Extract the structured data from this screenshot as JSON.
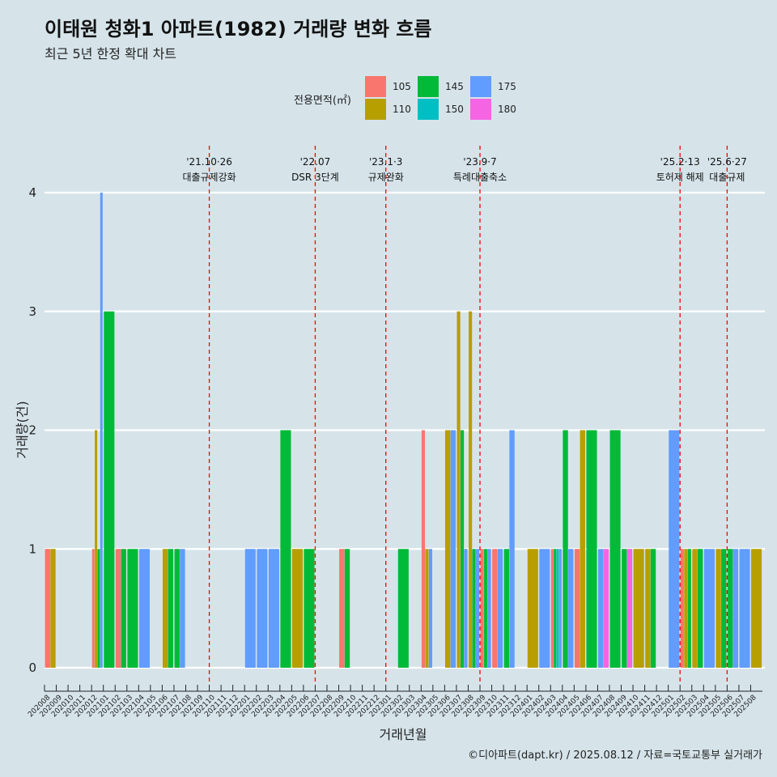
{
  "title": "이태원 청화1 아파트(1982) 거래량 변화 흐름",
  "subtitle": "최근 5년 한정 확대 차트",
  "caption": "©디아파트(dapt.kr) / 2025.08.12 / 자료=국토교통부 실거래가",
  "chart_data": {
    "type": "bar",
    "title": "이태원 청화1 아파트(1982) 거래량 변화 흐름",
    "subtitle": "최근 5년 한정 확대 차트",
    "xlabel": "거래년월",
    "ylabel": "거래량(건)",
    "ylim": [
      0,
      4
    ],
    "yticks": [
      0,
      1,
      2,
      3,
      4
    ],
    "grid": true,
    "legend": {
      "title": "전용면적(㎡)",
      "placement": "top",
      "entries": [
        {
          "name": "105",
          "color": "#f8766d"
        },
        {
          "name": "110",
          "color": "#b79f00"
        },
        {
          "name": "145",
          "color": "#00ba38"
        },
        {
          "name": "150",
          "color": "#00bfc4"
        },
        {
          "name": "175",
          "color": "#619cff"
        },
        {
          "name": "180",
          "color": "#f564e3"
        }
      ]
    },
    "categories": [
      "202008",
      "202009",
      "202010",
      "202011",
      "202012",
      "202101",
      "202102",
      "202103",
      "202104",
      "202105",
      "202106",
      "202107",
      "202108",
      "202109",
      "202110",
      "202111",
      "202112",
      "202201",
      "202202",
      "202203",
      "202204",
      "202205",
      "202206",
      "202207",
      "202208",
      "202209",
      "202210",
      "202211",
      "202212",
      "202301",
      "202302",
      "202303",
      "202304",
      "202305",
      "202306",
      "202307",
      "202308",
      "202309",
      "202310",
      "202311",
      "202312",
      "202401",
      "202402",
      "202403",
      "202404",
      "202405",
      "202406",
      "202407",
      "202408",
      "202409",
      "202410",
      "202411",
      "202412",
      "202501",
      "202502",
      "202503",
      "202504",
      "202505",
      "202506",
      "202507",
      "202508"
    ],
    "series": [
      {
        "name": "105",
        "color": "#f8766d",
        "values": [
          1,
          0,
          0,
          0,
          1,
          0,
          1,
          0,
          0,
          0,
          0,
          0,
          0,
          0,
          0,
          0,
          0,
          0,
          0,
          0,
          0,
          0,
          0,
          0,
          0,
          1,
          0,
          0,
          0,
          0,
          0,
          0,
          2,
          0,
          0,
          0,
          0,
          1,
          1,
          0,
          0,
          0,
          0,
          1,
          0,
          1,
          0,
          0,
          0,
          0,
          0,
          0,
          0,
          0,
          1,
          0,
          0,
          0,
          0,
          0,
          0
        ]
      },
      {
        "name": "110",
        "color": "#b79f00",
        "values": [
          1,
          0,
          0,
          0,
          2,
          0,
          0,
          0,
          0,
          0,
          1,
          0,
          0,
          0,
          0,
          0,
          0,
          0,
          0,
          0,
          0,
          1,
          0,
          0,
          0,
          0,
          0,
          0,
          0,
          0,
          0,
          0,
          1,
          0,
          2,
          3,
          3,
          0,
          0,
          0,
          0,
          1,
          0,
          0,
          0,
          2,
          0,
          0,
          0,
          0,
          1,
          1,
          0,
          0,
          1,
          1,
          0,
          1,
          0,
          0,
          1
        ]
      },
      {
        "name": "145",
        "color": "#00ba38",
        "values": [
          0,
          0,
          0,
          0,
          1,
          3,
          1,
          1,
          0,
          0,
          1,
          1,
          0,
          0,
          0,
          0,
          0,
          0,
          0,
          0,
          2,
          0,
          1,
          0,
          0,
          1,
          0,
          0,
          0,
          0,
          1,
          0,
          0,
          0,
          0,
          2,
          1,
          1,
          0,
          1,
          0,
          0,
          0,
          1,
          2,
          0,
          2,
          0,
          2,
          1,
          0,
          1,
          0,
          0,
          1,
          1,
          0,
          1,
          1,
          0,
          0
        ]
      },
      {
        "name": "150",
        "color": "#00bfc4",
        "values": [
          0,
          0,
          0,
          0,
          0,
          0,
          0,
          0,
          0,
          0,
          0,
          0,
          0,
          0,
          0,
          0,
          0,
          0,
          0,
          0,
          0,
          0,
          0,
          0,
          0,
          0,
          0,
          0,
          0,
          0,
          0,
          0,
          0,
          0,
          0,
          0,
          0,
          0,
          0,
          0,
          0,
          0,
          0,
          1,
          0,
          0,
          0,
          0,
          0,
          0,
          0,
          0,
          0,
          0,
          0,
          0,
          0,
          0,
          0,
          0,
          0
        ]
      },
      {
        "name": "175",
        "color": "#619cff",
        "values": [
          0,
          0,
          0,
          0,
          4,
          0,
          0,
          0,
          1,
          0,
          0,
          1,
          0,
          0,
          0,
          0,
          0,
          1,
          1,
          1,
          0,
          0,
          0,
          0,
          0,
          0,
          0,
          0,
          0,
          0,
          0,
          0,
          1,
          0,
          2,
          1,
          1,
          1,
          1,
          2,
          0,
          0,
          1,
          1,
          1,
          0,
          0,
          1,
          0,
          0,
          0,
          0,
          0,
          2,
          0,
          0,
          1,
          0,
          1,
          1,
          0
        ]
      },
      {
        "name": "180",
        "color": "#f564e3",
        "values": [
          0,
          0,
          0,
          0,
          0,
          0,
          0,
          0,
          0,
          0,
          0,
          0,
          0,
          0,
          0,
          0,
          0,
          0,
          0,
          0,
          0,
          0,
          0,
          0,
          0,
          0,
          0,
          0,
          0,
          0,
          0,
          0,
          0,
          0,
          0,
          0,
          0,
          0,
          0,
          0,
          0,
          0,
          0,
          0,
          0,
          0,
          0,
          1,
          0,
          1,
          0,
          0,
          0,
          0,
          0,
          0,
          0,
          0,
          0,
          0,
          0
        ]
      }
    ],
    "annotations": [
      {
        "date": "'21.10·26",
        "label": "대출규제강화",
        "at_category": "202110"
      },
      {
        "date": "'22.07",
        "label": "DSR 3단계",
        "at_category": "202207"
      },
      {
        "date": "'23.1·3",
        "label": "규제완화",
        "at_category": "202301"
      },
      {
        "date": "'23.9·7",
        "label": "특례대출축소",
        "at_category": "202309"
      },
      {
        "date": "'25.2·13",
        "label": "토허제 해제",
        "at_category": "202502"
      },
      {
        "date": "'25.6·27",
        "label": "대출규제",
        "at_category": "202506"
      }
    ],
    "reference_line_color": "#ff0000"
  }
}
